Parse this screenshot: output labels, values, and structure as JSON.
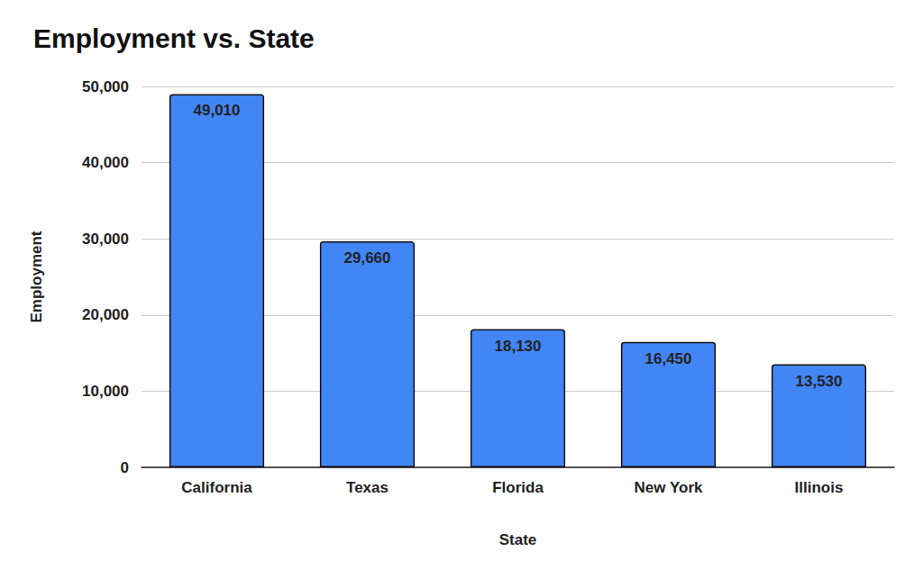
{
  "chart_data": {
    "type": "bar",
    "title": "Employment vs. State",
    "x_label": "State",
    "y_label": "Employment",
    "categories": [
      "California",
      "Texas",
      "Florida",
      "New York",
      "Illinois"
    ],
    "values": [
      49010,
      29660,
      18130,
      16450,
      13530
    ],
    "value_labels": [
      "49,010",
      "29,660",
      "18,130",
      "16,450",
      "13,530"
    ],
    "color": "#4285f4",
    "ylim": [
      0,
      50000
    ],
    "yticks": [
      0,
      {
        "value": 10000,
        "label": "10,000"
      },
      {
        "value": 20000,
        "label": "20,000"
      },
      {
        "value": 30000,
        "label": "30,000"
      },
      {
        "value": 40000,
        "label": "40,000"
      },
      {
        "value": 50000,
        "label": "50,000"
      }
    ],
    "grid": true,
    "data_labels": true
  }
}
